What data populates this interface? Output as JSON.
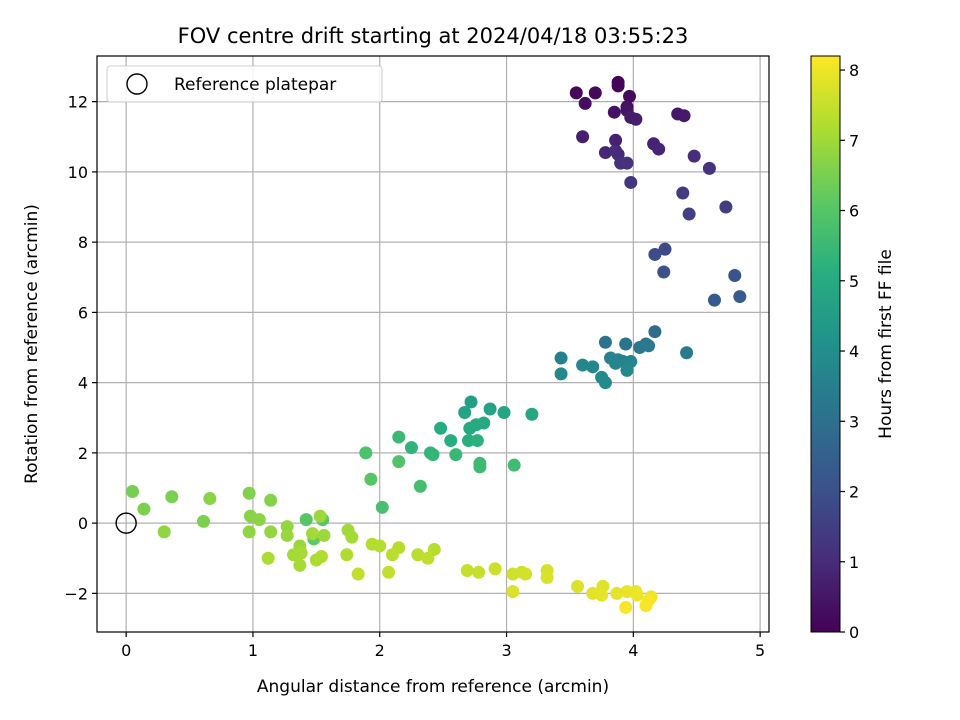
{
  "chart_data": {
    "type": "scatter",
    "title": "FOV centre drift starting at 2024/04/18 03:55:23",
    "xlabel": "Angular distance from reference (arcmin)",
    "ylabel": "Rotation from reference (arcmin)",
    "xlim": [
      -0.23,
      5.07
    ],
    "ylim": [
      -3.1,
      13.3
    ],
    "xticks": [
      0,
      1,
      2,
      3,
      4,
      5
    ],
    "yticks": [
      -2,
      0,
      2,
      4,
      6,
      8,
      10,
      12
    ],
    "grid": true,
    "legend": {
      "placement": "top-left",
      "entries": [
        "Reference platepar"
      ]
    },
    "reference_point": {
      "x": 0,
      "y": 0,
      "label": "Reference platepar"
    },
    "colorbar": {
      "label": "Hours from first FF file",
      "range": [
        0,
        8.2
      ],
      "ticks": [
        0,
        1,
        2,
        3,
        4,
        5,
        6,
        7,
        8
      ],
      "colormap": "viridis"
    },
    "points": [
      {
        "x": 3.88,
        "y": 12.55,
        "c": 0.05
      },
      {
        "x": 3.88,
        "y": 12.45,
        "c": 0.1
      },
      {
        "x": 3.55,
        "y": 12.25,
        "c": 0.15
      },
      {
        "x": 3.7,
        "y": 12.25,
        "c": 0.2
      },
      {
        "x": 3.97,
        "y": 12.15,
        "c": 0.25
      },
      {
        "x": 3.62,
        "y": 11.95,
        "c": 0.3
      },
      {
        "x": 3.95,
        "y": 11.85,
        "c": 0.35
      },
      {
        "x": 3.85,
        "y": 11.7,
        "c": 0.4
      },
      {
        "x": 3.95,
        "y": 11.75,
        "c": 0.45
      },
      {
        "x": 4.35,
        "y": 11.65,
        "c": 0.5
      },
      {
        "x": 4.4,
        "y": 11.6,
        "c": 0.55
      },
      {
        "x": 3.98,
        "y": 11.55,
        "c": 0.6
      },
      {
        "x": 4.02,
        "y": 11.5,
        "c": 0.65
      },
      {
        "x": 3.6,
        "y": 11.0,
        "c": 0.7
      },
      {
        "x": 3.86,
        "y": 10.9,
        "c": 0.75
      },
      {
        "x": 4.16,
        "y": 10.8,
        "c": 0.8
      },
      {
        "x": 4.2,
        "y": 10.65,
        "c": 0.85
      },
      {
        "x": 3.78,
        "y": 10.55,
        "c": 0.9
      },
      {
        "x": 3.86,
        "y": 10.6,
        "c": 0.95
      },
      {
        "x": 3.88,
        "y": 10.5,
        "c": 1.0
      },
      {
        "x": 4.48,
        "y": 10.45,
        "c": 1.05
      },
      {
        "x": 3.9,
        "y": 10.25,
        "c": 1.1
      },
      {
        "x": 3.95,
        "y": 10.25,
        "c": 1.15
      },
      {
        "x": 4.6,
        "y": 10.1,
        "c": 1.2
      },
      {
        "x": 3.98,
        "y": 9.7,
        "c": 1.25
      },
      {
        "x": 4.39,
        "y": 9.4,
        "c": 1.4
      },
      {
        "x": 4.73,
        "y": 9.0,
        "c": 1.5
      },
      {
        "x": 4.44,
        "y": 8.8,
        "c": 1.55
      },
      {
        "x": 4.25,
        "y": 7.8,
        "c": 1.8
      },
      {
        "x": 4.17,
        "y": 7.65,
        "c": 1.85
      },
      {
        "x": 4.24,
        "y": 7.15,
        "c": 2.0
      },
      {
        "x": 4.8,
        "y": 7.05,
        "c": 2.1
      },
      {
        "x": 4.64,
        "y": 6.35,
        "c": 2.3
      },
      {
        "x": 4.84,
        "y": 6.45,
        "c": 2.35
      },
      {
        "x": 4.17,
        "y": 5.45,
        "c": 2.9
      },
      {
        "x": 3.78,
        "y": 5.15,
        "c": 3.1
      },
      {
        "x": 3.94,
        "y": 5.1,
        "c": 3.15
      },
      {
        "x": 4.1,
        "y": 5.1,
        "c": 3.2
      },
      {
        "x": 4.05,
        "y": 5.0,
        "c": 3.25
      },
      {
        "x": 4.12,
        "y": 5.05,
        "c": 3.3
      },
      {
        "x": 4.42,
        "y": 4.85,
        "c": 3.35
      },
      {
        "x": 3.43,
        "y": 4.7,
        "c": 3.55
      },
      {
        "x": 3.82,
        "y": 4.7,
        "c": 3.6
      },
      {
        "x": 3.88,
        "y": 4.65,
        "c": 3.62
      },
      {
        "x": 3.92,
        "y": 4.6,
        "c": 3.65
      },
      {
        "x": 3.98,
        "y": 4.6,
        "c": 3.7
      },
      {
        "x": 3.86,
        "y": 4.55,
        "c": 3.72
      },
      {
        "x": 3.6,
        "y": 4.5,
        "c": 3.75
      },
      {
        "x": 3.68,
        "y": 4.45,
        "c": 3.78
      },
      {
        "x": 3.95,
        "y": 4.35,
        "c": 3.8
      },
      {
        "x": 3.43,
        "y": 4.25,
        "c": 3.85
      },
      {
        "x": 3.75,
        "y": 4.15,
        "c": 3.88
      },
      {
        "x": 3.78,
        "y": 4.0,
        "c": 3.9
      },
      {
        "x": 2.72,
        "y": 3.45,
        "c": 4.6
      },
      {
        "x": 2.87,
        "y": 3.25,
        "c": 4.7
      },
      {
        "x": 2.67,
        "y": 3.15,
        "c": 4.75
      },
      {
        "x": 2.98,
        "y": 3.15,
        "c": 4.8
      },
      {
        "x": 3.2,
        "y": 3.1,
        "c": 4.85
      },
      {
        "x": 2.82,
        "y": 2.85,
        "c": 4.9
      },
      {
        "x": 2.76,
        "y": 2.8,
        "c": 4.95
      },
      {
        "x": 2.71,
        "y": 2.7,
        "c": 5.0
      },
      {
        "x": 2.48,
        "y": 2.7,
        "c": 5.05
      },
      {
        "x": 2.56,
        "y": 2.35,
        "c": 5.1
      },
      {
        "x": 2.7,
        "y": 2.35,
        "c": 5.15
      },
      {
        "x": 2.77,
        "y": 2.35,
        "c": 5.2
      },
      {
        "x": 2.25,
        "y": 2.15,
        "c": 5.3
      },
      {
        "x": 2.4,
        "y": 2.0,
        "c": 5.35
      },
      {
        "x": 2.42,
        "y": 1.95,
        "c": 5.4
      },
      {
        "x": 2.6,
        "y": 1.95,
        "c": 5.45
      },
      {
        "x": 2.15,
        "y": 2.45,
        "c": 5.5
      },
      {
        "x": 2.79,
        "y": 1.7,
        "c": 5.55
      },
      {
        "x": 2.79,
        "y": 1.6,
        "c": 5.58
      },
      {
        "x": 3.06,
        "y": 1.65,
        "c": 5.6
      },
      {
        "x": 2.32,
        "y": 1.05,
        "c": 5.7
      },
      {
        "x": 2.02,
        "y": 0.45,
        "c": 5.75
      },
      {
        "x": 1.89,
        "y": 2.0,
        "c": 5.85
      },
      {
        "x": 2.15,
        "y": 1.75,
        "c": 5.9
      },
      {
        "x": 1.93,
        "y": 1.25,
        "c": 6.0
      },
      {
        "x": 1.42,
        "y": 0.1,
        "c": 6.0
      },
      {
        "x": 1.55,
        "y": 0.1,
        "c": 6.05
      },
      {
        "x": 1.48,
        "y": -0.45,
        "c": 6.1
      },
      {
        "x": 0.05,
        "y": 0.9,
        "c": 6.45
      },
      {
        "x": 0.36,
        "y": 0.75,
        "c": 6.5
      },
      {
        "x": 0.14,
        "y": 0.4,
        "c": 6.55
      },
      {
        "x": 0.61,
        "y": 0.05,
        "c": 6.55
      },
      {
        "x": 0.97,
        "y": 0.85,
        "c": 6.6
      },
      {
        "x": 1.14,
        "y": 0.65,
        "c": 6.65
      },
      {
        "x": 0.66,
        "y": 0.7,
        "c": 6.7
      },
      {
        "x": 0.98,
        "y": 0.2,
        "c": 6.7
      },
      {
        "x": 1.05,
        "y": 0.1,
        "c": 6.75
      },
      {
        "x": 0.3,
        "y": -0.25,
        "c": 6.8
      },
      {
        "x": 0.97,
        "y": -0.25,
        "c": 6.8
      },
      {
        "x": 1.14,
        "y": -0.25,
        "c": 6.85
      },
      {
        "x": 1.27,
        "y": -0.1,
        "c": 6.85
      },
      {
        "x": 1.27,
        "y": -0.35,
        "c": 6.9
      },
      {
        "x": 1.37,
        "y": -0.65,
        "c": 6.9
      },
      {
        "x": 1.53,
        "y": 0.2,
        "c": 6.95
      },
      {
        "x": 1.56,
        "y": -0.35,
        "c": 6.95
      },
      {
        "x": 1.47,
        "y": -0.3,
        "c": 7.0
      },
      {
        "x": 1.75,
        "y": -0.2,
        "c": 7.0
      },
      {
        "x": 1.78,
        "y": -0.4,
        "c": 7.05
      },
      {
        "x": 1.32,
        "y": -0.9,
        "c": 7.05
      },
      {
        "x": 1.38,
        "y": -0.85,
        "c": 7.1
      },
      {
        "x": 1.37,
        "y": -1.2,
        "c": 7.1
      },
      {
        "x": 1.12,
        "y": -1.0,
        "c": 7.15
      },
      {
        "x": 1.5,
        "y": -1.05,
        "c": 7.15
      },
      {
        "x": 1.54,
        "y": -0.95,
        "c": 7.2
      },
      {
        "x": 1.74,
        "y": -0.9,
        "c": 7.2
      },
      {
        "x": 1.94,
        "y": -0.6,
        "c": 7.25
      },
      {
        "x": 2.0,
        "y": -0.65,
        "c": 7.25
      },
      {
        "x": 2.15,
        "y": -0.7,
        "c": 7.3
      },
      {
        "x": 2.43,
        "y": -0.75,
        "c": 7.3
      },
      {
        "x": 2.3,
        "y": -0.9,
        "c": 7.35
      },
      {
        "x": 2.1,
        "y": -0.9,
        "c": 7.35
      },
      {
        "x": 2.38,
        "y": -1.0,
        "c": 7.4
      },
      {
        "x": 1.83,
        "y": -1.45,
        "c": 7.45
      },
      {
        "x": 2.07,
        "y": -1.4,
        "c": 7.45
      },
      {
        "x": 2.69,
        "y": -1.35,
        "c": 7.5
      },
      {
        "x": 2.78,
        "y": -1.4,
        "c": 7.5
      },
      {
        "x": 2.91,
        "y": -1.3,
        "c": 7.55
      },
      {
        "x": 3.05,
        "y": -1.45,
        "c": 7.6
      },
      {
        "x": 3.12,
        "y": -1.4,
        "c": 7.62
      },
      {
        "x": 3.15,
        "y": -1.45,
        "c": 7.65
      },
      {
        "x": 3.32,
        "y": -1.35,
        "c": 7.7
      },
      {
        "x": 3.32,
        "y": -1.55,
        "c": 7.72
      },
      {
        "x": 3.05,
        "y": -1.95,
        "c": 7.75
      },
      {
        "x": 3.56,
        "y": -1.8,
        "c": 7.78
      },
      {
        "x": 3.76,
        "y": -1.8,
        "c": 7.8
      },
      {
        "x": 3.68,
        "y": -2.0,
        "c": 7.85
      },
      {
        "x": 3.75,
        "y": -2.05,
        "c": 7.88
      },
      {
        "x": 3.87,
        "y": -2.0,
        "c": 7.9
      },
      {
        "x": 3.95,
        "y": -1.95,
        "c": 7.92
      },
      {
        "x": 4.02,
        "y": -1.95,
        "c": 7.95
      },
      {
        "x": 4.03,
        "y": -2.05,
        "c": 8.0
      },
      {
        "x": 4.14,
        "y": -2.1,
        "c": 8.05
      },
      {
        "x": 4.12,
        "y": -2.2,
        "c": 8.1
      },
      {
        "x": 4.1,
        "y": -2.35,
        "c": 8.12
      },
      {
        "x": 3.94,
        "y": -2.4,
        "c": 8.15
      }
    ]
  }
}
